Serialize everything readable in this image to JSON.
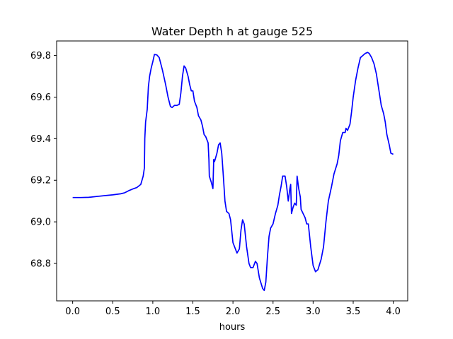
{
  "chart_data": {
    "type": "line",
    "title": "Water Depth h at gauge 525",
    "xlabel": "hours",
    "ylabel": "",
    "xlim": [
      -0.2,
      4.18
    ],
    "ylim": [
      68.62,
      69.87
    ],
    "xticks": [
      0.0,
      0.5,
      1.0,
      1.5,
      2.0,
      2.5,
      3.0,
      3.5,
      4.0
    ],
    "xtick_labels": [
      "0.0",
      "0.5",
      "1.0",
      "1.5",
      "2.0",
      "2.5",
      "3.0",
      "3.5",
      "4.0"
    ],
    "yticks": [
      68.8,
      69.0,
      69.2,
      69.4,
      69.6,
      69.8
    ],
    "ytick_labels": [
      "68.8",
      "69.0",
      "69.2",
      "69.4",
      "69.6",
      "69.8"
    ],
    "grid": false,
    "legend": "none",
    "series": [
      {
        "color": "#0000ff",
        "points": [
          [
            0.0,
            69.117
          ],
          [
            0.1,
            69.117
          ],
          [
            0.2,
            69.118
          ],
          [
            0.3,
            69.122
          ],
          [
            0.4,
            69.126
          ],
          [
            0.5,
            69.13
          ],
          [
            0.6,
            69.135
          ],
          [
            0.65,
            69.14
          ],
          [
            0.7,
            69.15
          ],
          [
            0.75,
            69.158
          ],
          [
            0.8,
            69.165
          ],
          [
            0.85,
            69.18
          ],
          [
            0.88,
            69.22
          ],
          [
            0.895,
            69.26
          ],
          [
            0.9,
            69.4
          ],
          [
            0.91,
            69.48
          ],
          [
            0.93,
            69.54
          ],
          [
            0.945,
            69.65
          ],
          [
            0.96,
            69.7
          ],
          [
            0.98,
            69.74
          ],
          [
            1.0,
            69.77
          ],
          [
            1.02,
            69.805
          ],
          [
            1.05,
            69.803
          ],
          [
            1.08,
            69.79
          ],
          [
            1.12,
            69.73
          ],
          [
            1.16,
            69.66
          ],
          [
            1.19,
            69.6
          ],
          [
            1.22,
            69.555
          ],
          [
            1.24,
            69.55
          ],
          [
            1.27,
            69.56
          ],
          [
            1.3,
            69.56
          ],
          [
            1.33,
            69.565
          ],
          [
            1.35,
            69.62
          ],
          [
            1.37,
            69.7
          ],
          [
            1.39,
            69.75
          ],
          [
            1.41,
            69.74
          ],
          [
            1.44,
            69.7
          ],
          [
            1.46,
            69.66
          ],
          [
            1.48,
            69.63
          ],
          [
            1.5,
            69.63
          ],
          [
            1.52,
            69.58
          ],
          [
            1.55,
            69.55
          ],
          [
            1.57,
            69.51
          ],
          [
            1.6,
            69.49
          ],
          [
            1.62,
            69.46
          ],
          [
            1.64,
            69.42
          ],
          [
            1.66,
            69.41
          ],
          [
            1.69,
            69.38
          ],
          [
            1.7,
            69.3
          ],
          [
            1.705,
            69.22
          ],
          [
            1.73,
            69.19
          ],
          [
            1.75,
            69.16
          ],
          [
            1.76,
            69.3
          ],
          [
            1.77,
            69.29
          ],
          [
            1.8,
            69.33
          ],
          [
            1.82,
            69.37
          ],
          [
            1.84,
            69.38
          ],
          [
            1.86,
            69.33
          ],
          [
            1.88,
            69.22
          ],
          [
            1.9,
            69.1
          ],
          [
            1.92,
            69.05
          ],
          [
            1.95,
            69.04
          ],
          [
            1.97,
            69.01
          ],
          [
            2.0,
            68.9
          ],
          [
            2.02,
            68.88
          ],
          [
            2.05,
            68.85
          ],
          [
            2.08,
            68.87
          ],
          [
            2.1,
            68.96
          ],
          [
            2.12,
            69.01
          ],
          [
            2.14,
            68.99
          ],
          [
            2.17,
            68.88
          ],
          [
            2.2,
            68.8
          ],
          [
            2.22,
            68.78
          ],
          [
            2.25,
            68.78
          ],
          [
            2.28,
            68.81
          ],
          [
            2.3,
            68.8
          ],
          [
            2.33,
            68.73
          ],
          [
            2.37,
            68.68
          ],
          [
            2.39,
            68.67
          ],
          [
            2.41,
            68.71
          ],
          [
            2.43,
            68.83
          ],
          [
            2.45,
            68.93
          ],
          [
            2.47,
            68.97
          ],
          [
            2.5,
            68.99
          ],
          [
            2.53,
            69.04
          ],
          [
            2.56,
            69.08
          ],
          [
            2.58,
            69.13
          ],
          [
            2.6,
            69.17
          ],
          [
            2.62,
            69.22
          ],
          [
            2.65,
            69.22
          ],
          [
            2.67,
            69.17
          ],
          [
            2.69,
            69.1
          ],
          [
            2.71,
            69.16
          ],
          [
            2.72,
            69.18
          ],
          [
            2.73,
            69.04
          ],
          [
            2.75,
            69.07
          ],
          [
            2.77,
            69.09
          ],
          [
            2.79,
            69.08
          ],
          [
            2.8,
            69.22
          ],
          [
            2.82,
            69.16
          ],
          [
            2.84,
            69.12
          ],
          [
            2.85,
            69.06
          ],
          [
            2.9,
            69.02
          ],
          [
            2.92,
            68.99
          ],
          [
            2.94,
            68.99
          ],
          [
            2.97,
            68.88
          ],
          [
            3.0,
            68.79
          ],
          [
            3.03,
            68.76
          ],
          [
            3.06,
            68.77
          ],
          [
            3.1,
            68.82
          ],
          [
            3.13,
            68.88
          ],
          [
            3.16,
            69.0
          ],
          [
            3.19,
            69.1
          ],
          [
            3.23,
            69.17
          ],
          [
            3.26,
            69.23
          ],
          [
            3.3,
            69.28
          ],
          [
            3.32,
            69.32
          ],
          [
            3.34,
            69.39
          ],
          [
            3.37,
            69.43
          ],
          [
            3.4,
            69.43
          ],
          [
            3.41,
            69.45
          ],
          [
            3.43,
            69.44
          ],
          [
            3.46,
            69.47
          ],
          [
            3.48,
            69.53
          ],
          [
            3.5,
            69.6
          ],
          [
            3.53,
            69.68
          ],
          [
            3.56,
            69.74
          ],
          [
            3.59,
            69.79
          ],
          [
            3.62,
            69.8
          ],
          [
            3.65,
            69.81
          ],
          [
            3.68,
            69.815
          ],
          [
            3.7,
            69.81
          ],
          [
            3.73,
            69.79
          ],
          [
            3.76,
            69.76
          ],
          [
            3.79,
            69.71
          ],
          [
            3.81,
            69.66
          ],
          [
            3.83,
            69.61
          ],
          [
            3.85,
            69.56
          ],
          [
            3.88,
            69.52
          ],
          [
            3.9,
            69.48
          ],
          [
            3.92,
            69.42
          ],
          [
            3.95,
            69.37
          ],
          [
            3.97,
            69.33
          ],
          [
            4.0,
            69.325
          ]
        ]
      }
    ]
  }
}
